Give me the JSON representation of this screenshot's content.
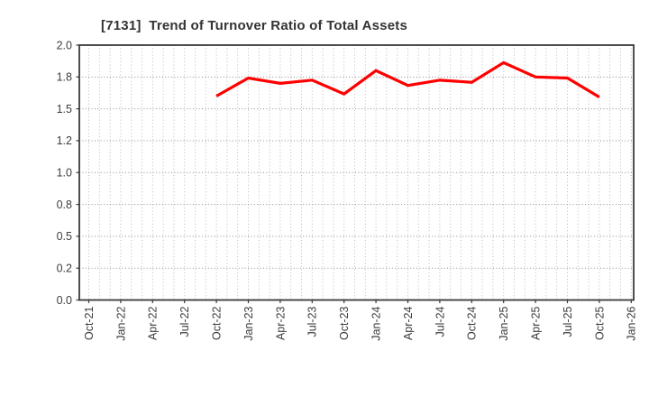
{
  "window": {
    "background": "#ffffff"
  },
  "chart_data": {
    "type": "line",
    "title": "[7131]  Trend of Turnover Ratio of Total Assets",
    "stock_code": "7131",
    "xlabel": "",
    "ylabel": "",
    "x_tick_labels": [
      "Oct-21",
      "Jan-22",
      "Apr-22",
      "Jul-22",
      "Oct-22",
      "Jan-23",
      "Apr-23",
      "Jul-23",
      "Oct-23",
      "Jan-24",
      "Apr-24",
      "Jul-24",
      "Oct-24",
      "Jan-25",
      "Apr-25",
      "Jul-25",
      "Oct-25",
      "Jan-26"
    ],
    "y_tick_labels": [
      "0.0",
      "0.2",
      "0.5",
      "0.8",
      "1.0",
      "1.2",
      "1.5",
      "1.8",
      "2.0"
    ],
    "y_axis_note": "tick labels are evenly spaced (non-uniform value steps)",
    "ylim_labels": [
      0.0,
      2.0
    ],
    "grid": true,
    "minor_vertical_gridlines_per_quarter": 3,
    "legend": "none",
    "series": [
      {
        "name": "Turnover Ratio of Total Assets",
        "color": "#ff0000",
        "points": [
          {
            "x": "Oct-22",
            "y": 1.62
          },
          {
            "x": "Jan-23",
            "y": 1.79
          },
          {
            "x": "Apr-23",
            "y": 1.74
          },
          {
            "x": "Jul-23",
            "y": 1.77
          },
          {
            "x": "Oct-23",
            "y": 1.64
          },
          {
            "x": "Jan-24",
            "y": 1.84
          },
          {
            "x": "Apr-24",
            "y": 1.72
          },
          {
            "x": "Jul-24",
            "y": 1.77
          },
          {
            "x": "Oct-24",
            "y": 1.75
          },
          {
            "x": "Jan-25",
            "y": 1.89
          },
          {
            "x": "Apr-25",
            "y": 1.8
          },
          {
            "x": "Jul-25",
            "y": 1.79
          },
          {
            "x": "Oct-25",
            "y": 1.61
          }
        ]
      }
    ],
    "colors": {
      "line": "#ff0000",
      "title_text": "#333333",
      "axis_border": "#3a3a3a",
      "major_grid": "#8c8c8c",
      "minor_grid": "#b3b3b3",
      "tick_label": "#3d3d3d"
    }
  }
}
